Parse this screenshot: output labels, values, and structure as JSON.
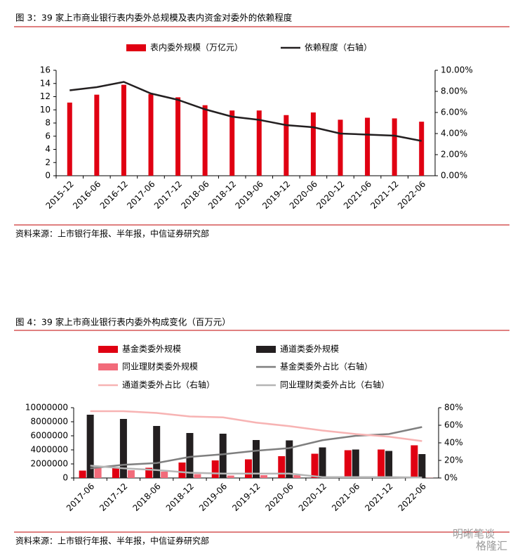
{
  "chart_data": [
    {
      "type": "combo",
      "title": "图 3：39 家上市商业银行表内委外总规模及表内资金对委外的依赖程度",
      "source": "资料来源：上市银行年报、半年报，中信证券研究部",
      "categories": [
        "2015-12",
        "2016-06",
        "2016-12",
        "2017-06",
        "2017-12",
        "2018-06",
        "2018-12",
        "2019-06",
        "2019-12",
        "2020-06",
        "2020-12",
        "2021-06",
        "2021-12",
        "2022-06"
      ],
      "series": [
        {
          "name": "表内委外规模（万亿元）",
          "type": "bar",
          "color": "#e00012",
          "values": [
            11.1,
            12.3,
            13.8,
            12.4,
            11.9,
            10.7,
            9.9,
            9.9,
            9.2,
            9.6,
            8.5,
            8.8,
            8.7,
            8.2
          ]
        },
        {
          "name": "依赖程度（右轴）",
          "type": "line",
          "axis": "y2",
          "color": "#231f20",
          "values": [
            8.1,
            8.4,
            8.9,
            7.8,
            7.2,
            6.3,
            5.6,
            5.3,
            4.8,
            4.6,
            4.0,
            3.9,
            3.8,
            3.3
          ]
        }
      ],
      "ylim": [
        0,
        16
      ],
      "yticks": [
        0,
        2,
        4,
        6,
        8,
        10,
        12,
        14,
        16
      ],
      "y2lim": [
        0,
        10
      ],
      "y2ticks": [
        {
          "value": 0,
          "label": "0.00%"
        },
        {
          "value": 2,
          "label": "2.00%"
        },
        {
          "value": 4,
          "label": "4.00%"
        },
        {
          "value": 6,
          "label": "6.00%"
        },
        {
          "value": 8,
          "label": "8.00%"
        },
        {
          "value": 10,
          "label": "10.00%"
        }
      ]
    },
    {
      "type": "combo",
      "title": "图 4：39 家上市商业银行表内委外构成变化（百万元）",
      "source": "资料来源：上市银行年报、半年报，中信证券研究部",
      "categories": [
        "2017-06",
        "2017-12",
        "2018-06",
        "2018-12",
        "2019-06",
        "2019-12",
        "2020-06",
        "2020-12",
        "2021-06",
        "2021-12",
        "2022-06"
      ],
      "series": [
        {
          "name": "基金类委外规模",
          "type": "bar",
          "color": "#e00012",
          "values": [
            1050000,
            1400000,
            1450000,
            2200000,
            2500000,
            2650000,
            3100000,
            3450000,
            3950000,
            4050000,
            4650000
          ]
        },
        {
          "name": "通道类委外规模",
          "type": "bar",
          "color": "#231f20",
          "values": [
            9000000,
            8400000,
            7400000,
            6400000,
            6300000,
            5400000,
            5350000,
            4350000,
            4050000,
            3850000,
            3400000
          ]
        },
        {
          "name": "同业理财类委外规模",
          "type": "bar",
          "color": "#f26b7a",
          "values": [
            1400000,
            1100000,
            900000,
            550000,
            350000,
            400000,
            400000,
            100000,
            50000,
            30000,
            30000
          ]
        },
        {
          "name": "基金类委外占比（右轴）",
          "type": "line",
          "axis": "y2",
          "color": "#7f7f7f",
          "values": [
            11,
            15,
            17,
            24,
            27,
            31,
            34,
            43,
            48,
            50,
            58
          ]
        },
        {
          "name": "通道类委外占比（右轴）",
          "type": "line",
          "axis": "y2",
          "color": "#f7b3b3",
          "values": [
            76,
            76,
            74,
            70,
            69,
            63,
            59,
            54,
            50,
            47,
            42
          ]
        },
        {
          "name": "同业理财类委外占比（右轴）",
          "type": "line",
          "axis": "y2",
          "color": "#b5b5b5",
          "values": [
            14,
            11,
            9,
            6,
            5,
            5,
            5,
            1,
            1,
            1,
            0.5
          ]
        }
      ],
      "ylim": [
        0,
        10000000
      ],
      "yticks": [
        0,
        2000000,
        4000000,
        6000000,
        8000000,
        10000000
      ],
      "y2lim": [
        0,
        80
      ],
      "y2ticks": [
        {
          "value": 0,
          "label": "0%"
        },
        {
          "value": 20,
          "label": "20%"
        },
        {
          "value": 40,
          "label": "40%"
        },
        {
          "value": 60,
          "label": "60%"
        },
        {
          "value": 80,
          "label": "80%"
        }
      ]
    }
  ],
  "watermark": [
    "明晰笔谈",
    "格隆汇"
  ]
}
